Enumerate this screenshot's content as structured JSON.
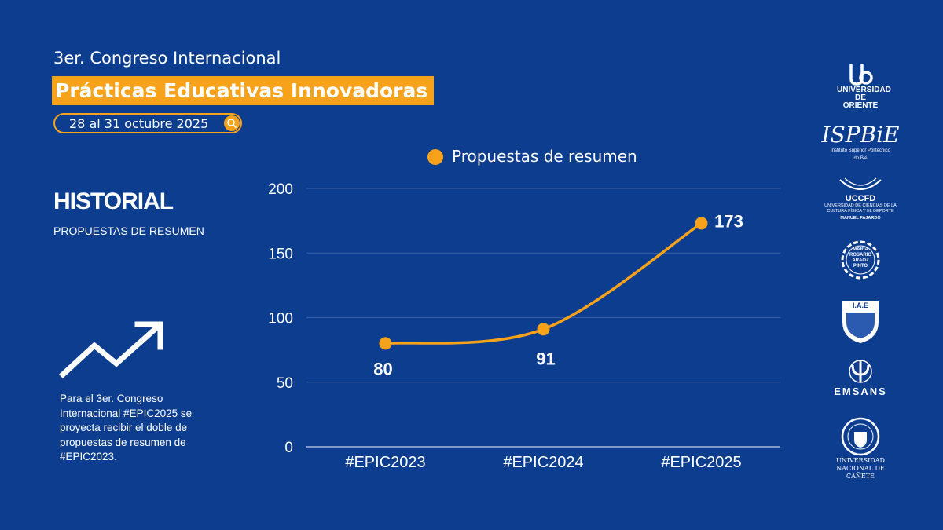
{
  "header": {
    "congress": "3er. Congreso Internacional",
    "event_title": "Prácticas Educativas Innovadoras",
    "dates": "28 al 31 octubre 2025"
  },
  "left_panel": {
    "title": "HISTORIAL",
    "subtitle": "PROPUESTAS DE RESUMEN",
    "description": "Para el 3er. Congreso Internacional #EPIC2025 se proyecta recibir el doble de propuestas de resumen de #EPIC2023."
  },
  "logos": {
    "universidad_oriente": "UNIVERSIDAD DE ORIENTE",
    "ispbie_mark": "ISPBiE",
    "ispbie_sub": "Instituto Superior Politécnico do Bié",
    "uccfd": "UCCFD",
    "uccfd_sub": "UNIVERSIDAD DE CIENCIAS DE LA CULTURA FÍSICA Y EL DEPORTE",
    "uccfd_name": "MANUEL FAJARDO",
    "maria_rosario": "MARIA ROSARIO ARAOZ PINTO",
    "iae": "I.A.E",
    "emsans": "EMSANS",
    "unc": "UNIVERSIDAD NACIONAL DE CAÑETE"
  },
  "colors": {
    "background": "#0d3d8f",
    "accent": "#f7a21b",
    "text": "#ffffff",
    "grid": "#3a5fa3"
  },
  "icons": {
    "date_pill": "search-icon",
    "trend": "trending-up-icon"
  },
  "chart_data": {
    "type": "line",
    "categories": [
      "#EPIC2023",
      "#EPIC2024",
      "#EPIC2025"
    ],
    "series": [
      {
        "name": "Propuestas de resumen",
        "values": [
          80,
          91,
          173
        ],
        "color": "#f7a21b"
      }
    ],
    "y_ticks": [
      "0",
      "50",
      "100",
      "150",
      "200"
    ],
    "ylim": [
      0,
      200
    ],
    "grid": true,
    "legend": "top",
    "data_labels": [
      "80",
      "91",
      "173"
    ]
  }
}
